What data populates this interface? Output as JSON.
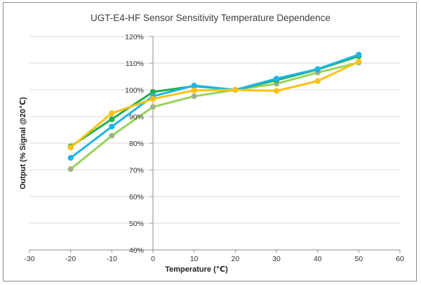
{
  "chart_data": {
    "type": "line",
    "title": "UGT-E4-HF  Sensor Sensitivity Temperature  Dependence",
    "xlabel": "Temperature (℃)",
    "ylabel": "Output  (% Signal @20℃)",
    "xlim": [
      -30,
      60
    ],
    "ylim": [
      40,
      120
    ],
    "x_ticks": [
      "-30",
      "-20",
      "-10",
      "0",
      "10",
      "20",
      "30",
      "40",
      "50",
      "60"
    ],
    "y_ticks": [
      "40%",
      "50%",
      "60%",
      "70%",
      "80%",
      "90%",
      "100%",
      "110%",
      "120%"
    ],
    "x": [
      -20,
      -10,
      0,
      10,
      20,
      30,
      40,
      50
    ],
    "grid": "horizontal",
    "legend": "none",
    "series": [
      {
        "color": "#97d35c",
        "values": [
          70.3,
          82.8,
          93.6,
          97.6,
          100.0,
          102.3,
          106.5,
          110.2
        ]
      },
      {
        "color": "#22b14c",
        "values": [
          78.8,
          89.0,
          99.2,
          101.4,
          100.0,
          103.6,
          107.6,
          112.6
        ]
      },
      {
        "color": "#1eb4ea",
        "values": [
          74.5,
          86.2,
          97.6,
          101.6,
          100.0,
          104.2,
          107.8,
          113.2
        ]
      },
      {
        "color": "#fdc113",
        "values": [
          78.4,
          91.2,
          96.6,
          99.8,
          100.0,
          99.6,
          103.3,
          110.6
        ]
      }
    ],
    "marker_color": "#a6a6a6"
  }
}
